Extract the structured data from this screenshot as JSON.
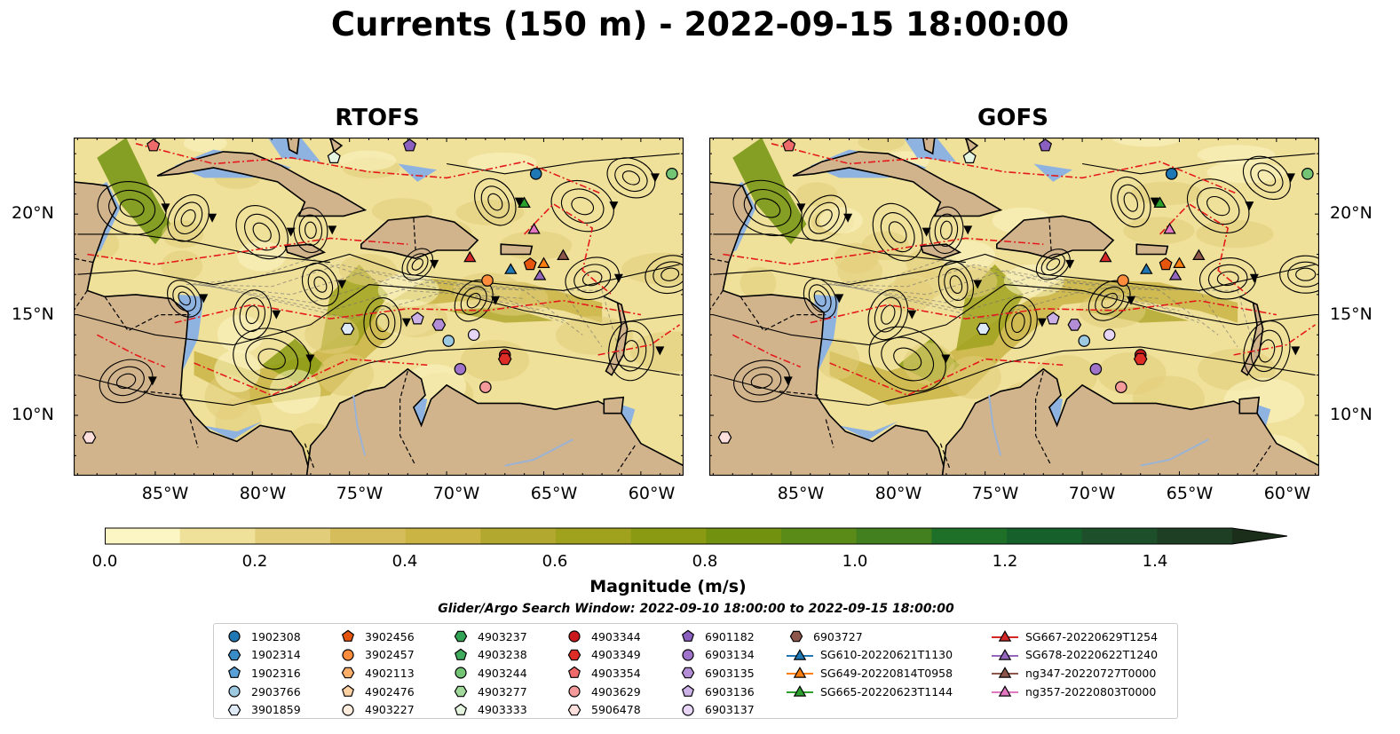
{
  "title": "Currents (150 m) - 2022-09-15 18:00:00",
  "panels": [
    {
      "title": "RTOFS"
    },
    {
      "title": "GOFS"
    }
  ],
  "axes": {
    "lat_ticks": [
      "20°N",
      "15°N",
      "10°N"
    ],
    "lon_ticks": [
      "85°W",
      "80°W",
      "75°W",
      "70°W",
      "65°W",
      "60°W"
    ],
    "lat_range": [
      7,
      23.8
    ],
    "lon_range": [
      -89.2,
      -57.8
    ]
  },
  "colorbar": {
    "label": "Magnitude (m/s)",
    "ticks": [
      "0.0",
      "0.2",
      "0.4",
      "0.6",
      "0.8",
      "1.0",
      "1.2",
      "1.4"
    ],
    "range": [
      0,
      1.5
    ],
    "step": 0.1,
    "colors": [
      "#fbf6c4",
      "#efe09a",
      "#e2cd7a",
      "#d6bd5c",
      "#c9b444",
      "#b2a830",
      "#a0a21e",
      "#8a9a12",
      "#72920f",
      "#5a8a17",
      "#42801f",
      "#1e7028",
      "#15602b",
      "#1c4f2a",
      "#1e3f24",
      "#1a2e1a"
    ],
    "extend": "max"
  },
  "search_window": "Glider/Argo Search Window: 2022-09-10 18:00:00 to 2022-09-15 18:00:00",
  "colors": {
    "land": "#d2b48c",
    "shallow_water": "#8fb3e0",
    "front": "#e41a1c"
  },
  "legend": {
    "columns": [
      [
        {
          "label": "1902308",
          "marker": "circle",
          "color": "#1f77b4"
        },
        {
          "label": "1902314",
          "marker": "hexagon",
          "color": "#3a8cc7"
        },
        {
          "label": "1902316",
          "marker": "pentagon",
          "color": "#5aa0d6"
        },
        {
          "label": "2903766",
          "marker": "circle",
          "color": "#9ecae1"
        },
        {
          "label": "3901859",
          "marker": "hexagon",
          "color": "#deebf7"
        }
      ],
      [
        {
          "label": "3902456",
          "marker": "pentagon",
          "color": "#e6550d"
        },
        {
          "label": "3902457",
          "marker": "circle",
          "color": "#fd8d3c"
        },
        {
          "label": "4902113",
          "marker": "hexagon",
          "color": "#fdae6b"
        },
        {
          "label": "4902476",
          "marker": "pentagon",
          "color": "#fdd0a2"
        },
        {
          "label": "4903227",
          "marker": "circle",
          "color": "#feedde"
        }
      ],
      [
        {
          "label": "4903237",
          "marker": "hexagon",
          "color": "#31a354"
        },
        {
          "label": "4903238",
          "marker": "pentagon",
          "color": "#41ab5d"
        },
        {
          "label": "4903244",
          "marker": "circle",
          "color": "#74c476"
        },
        {
          "label": "4903277",
          "marker": "hexagon",
          "color": "#a1d99b"
        },
        {
          "label": "4903333",
          "marker": "pentagon",
          "color": "#e5f5e0"
        }
      ],
      [
        {
          "label": "4903344",
          "marker": "circle",
          "color": "#cb181d"
        },
        {
          "label": "4903349",
          "marker": "hexagon",
          "color": "#de2d26"
        },
        {
          "label": "4903354",
          "marker": "pentagon",
          "color": "#ef6a6a"
        },
        {
          "label": "4903629",
          "marker": "circle",
          "color": "#f49a9a"
        },
        {
          "label": "5906478",
          "marker": "hexagon",
          "color": "#fde0dd"
        }
      ],
      [
        {
          "label": "6901182",
          "marker": "pentagon",
          "color": "#8a5fbf"
        },
        {
          "label": "6903134",
          "marker": "circle",
          "color": "#9e73c9"
        },
        {
          "label": "6903135",
          "marker": "hexagon",
          "color": "#b38ed6"
        },
        {
          "label": "6903136",
          "marker": "pentagon",
          "color": "#cbb1e6"
        },
        {
          "label": "6903137",
          "marker": "circle",
          "color": "#e6d5f5"
        }
      ],
      [
        {
          "label": "6903727",
          "marker": "hexagon",
          "color": "#8c564b"
        },
        {
          "label": "SG610-20220621T1130",
          "marker": "triangle-line",
          "color": "#1f77b4"
        },
        {
          "label": "SG649-20220814T0958",
          "marker": "triangle-line",
          "color": "#ff7f0e"
        },
        {
          "label": "SG665-20220623T1144",
          "marker": "triangle-line",
          "color": "#2ca02c"
        }
      ],
      [
        {
          "label": "SG667-20220629T1254",
          "marker": "triangle-line",
          "color": "#d62728"
        },
        {
          "label": "SG678-20220622T1240",
          "marker": "triangle-line",
          "color": "#9467bd"
        },
        {
          "label": "ng347-20220727T0000",
          "marker": "triangle-line",
          "color": "#8c564b"
        },
        {
          "label": "ng357-20220803T0000",
          "marker": "triangle-line",
          "color": "#e377c2"
        }
      ]
    ]
  },
  "markers": [
    {
      "lon": -85.1,
      "lat": 23.4,
      "shape": "pentagon",
      "color": "#ef6a6a"
    },
    {
      "lon": -71.9,
      "lat": 23.4,
      "shape": "pentagon",
      "color": "#8a5fbf"
    },
    {
      "lon": -75.8,
      "lat": 22.8,
      "shape": "pentagon",
      "color": "#e5f5e0"
    },
    {
      "lon": -65.4,
      "lat": 22.0,
      "shape": "circle",
      "color": "#1f77b4"
    },
    {
      "lon": -58.4,
      "lat": 22.0,
      "shape": "circle",
      "color": "#74c476"
    },
    {
      "lon": -66.0,
      "lat": 20.5,
      "shape": "triangle",
      "color": "#2ca02c"
    },
    {
      "lon": -65.5,
      "lat": 19.2,
      "shape": "triangle",
      "color": "#e377c2"
    },
    {
      "lon": -68.8,
      "lat": 17.8,
      "shape": "triangle",
      "color": "#d62728"
    },
    {
      "lon": -64.0,
      "lat": 17.9,
      "shape": "triangle",
      "color": "#8c564b"
    },
    {
      "lon": -65.7,
      "lat": 17.5,
      "shape": "pentagon",
      "color": "#e6550d"
    },
    {
      "lon": -66.7,
      "lat": 17.2,
      "shape": "triangle",
      "color": "#1f77b4"
    },
    {
      "lon": -65.0,
      "lat": 17.5,
      "shape": "triangle",
      "color": "#ff7f0e"
    },
    {
      "lon": -65.2,
      "lat": 16.9,
      "shape": "triangle",
      "color": "#9467bd"
    },
    {
      "lon": -67.9,
      "lat": 16.7,
      "shape": "circle",
      "color": "#fd8d3c"
    },
    {
      "lon": -71.5,
      "lat": 14.8,
      "shape": "pentagon",
      "color": "#cbb1e6"
    },
    {
      "lon": -70.4,
      "lat": 14.5,
      "shape": "hexagon",
      "color": "#b38ed6"
    },
    {
      "lon": -75.1,
      "lat": 14.3,
      "shape": "hexagon",
      "color": "#deebf7"
    },
    {
      "lon": -68.6,
      "lat": 14.0,
      "shape": "circle",
      "color": "#e6d5f5"
    },
    {
      "lon": -69.9,
      "lat": 13.7,
      "shape": "circle",
      "color": "#9ecae1"
    },
    {
      "lon": -67.0,
      "lat": 13.0,
      "shape": "circle",
      "color": "#cb181d"
    },
    {
      "lon": -67.0,
      "lat": 12.8,
      "shape": "hexagon",
      "color": "#de2d26"
    },
    {
      "lon": -69.3,
      "lat": 12.3,
      "shape": "circle",
      "color": "#9e73c9"
    },
    {
      "lon": -68.0,
      "lat": 11.4,
      "shape": "circle",
      "color": "#f49a9a"
    },
    {
      "lon": -88.4,
      "lat": 8.9,
      "shape": "hexagon",
      "color": "#fde0dd"
    }
  ]
}
